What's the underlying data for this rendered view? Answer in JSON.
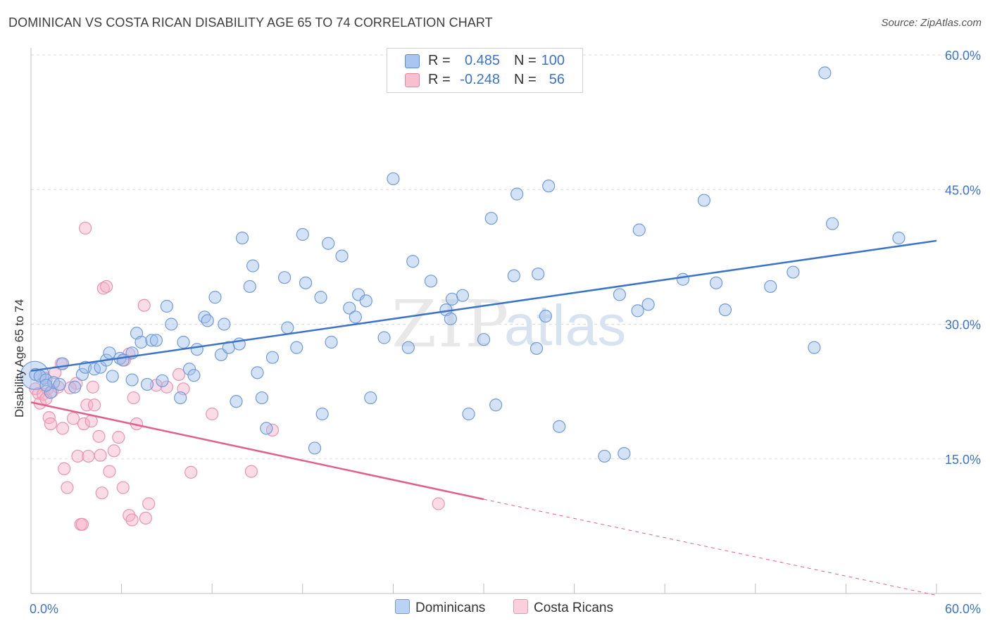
{
  "title": "DOMINICAN VS COSTA RICAN DISABILITY AGE 65 TO 74 CORRELATION CHART",
  "source": "Source: ZipAtlas.com",
  "watermark": {
    "zip": "ZIP",
    "atlas": "atlas"
  },
  "legend": {
    "rows": [
      {
        "r_label": "R =",
        "r_value": "0.485",
        "n_label": "N =",
        "n_value": "100",
        "color": "#a8c6f0",
        "border": "#5b8ed8"
      },
      {
        "r_label": "R =",
        "r_value": "-0.248",
        "n_label": "N =",
        "n_value": "56",
        "color": "#f8bfd0",
        "border": "#e584a4"
      }
    ]
  },
  "bottom_legend": [
    {
      "label": "Dominicans",
      "color": "#b9d3f5",
      "border": "#6f9bdc"
    },
    {
      "label": "Costa Ricans",
      "color": "#fbcfdc",
      "border": "#e897b1"
    }
  ],
  "colors": {
    "blue": "#3b74c7",
    "pink": "#e0608c",
    "axis_label": "#3b74c7",
    "grid": "#dddddd"
  },
  "chart_data": {
    "type": "scatter",
    "title": "DOMINICAN VS COSTA RICAN DISABILITY AGE 65 TO 74 CORRELATION CHART",
    "xlabel": "",
    "ylabel": "Disability Age 65 to 74",
    "xlim": [
      0,
      60
    ],
    "ylim": [
      0,
      60
    ],
    "x_tick_labels": [
      "0.0%",
      "60.0%"
    ],
    "y_ticks": [
      15,
      30,
      45,
      60
    ],
    "y_tick_labels": [
      "15.0%",
      "30.0%",
      "45.0%",
      "60.0%"
    ],
    "grid": true,
    "legend_position": "top-center",
    "series": [
      {
        "name": "Dominicans",
        "color": "#3b74c7",
        "trend": {
          "x0": 0,
          "y0": 24.8,
          "x1": 60,
          "y1": 39.3
        },
        "points": [
          [
            0.3,
            24.4
          ],
          [
            0.6,
            24.2
          ],
          [
            1.0,
            23.8
          ],
          [
            1.3,
            22.4
          ],
          [
            1.5,
            23.5
          ],
          [
            1.9,
            23.3
          ],
          [
            2.1,
            25.6
          ],
          [
            2.9,
            23.0
          ],
          [
            3.4,
            24.4
          ],
          [
            3.6,
            25.2
          ],
          [
            4.2,
            25.0
          ],
          [
            4.6,
            25.2
          ],
          [
            5.0,
            26.0
          ],
          [
            5.2,
            26.8
          ],
          [
            5.4,
            24.2
          ],
          [
            5.9,
            26.2
          ],
          [
            6.1,
            26.0
          ],
          [
            6.7,
            26.8
          ],
          [
            6.7,
            23.8
          ],
          [
            7.0,
            29.0
          ],
          [
            7.3,
            28.0
          ],
          [
            7.7,
            23.3
          ],
          [
            8.0,
            28.2
          ],
          [
            8.3,
            28.2
          ],
          [
            8.7,
            23.7
          ],
          [
            9.0,
            32.0
          ],
          [
            9.3,
            30.0
          ],
          [
            9.9,
            21.8
          ],
          [
            10.1,
            28.0
          ],
          [
            10.5,
            25.0
          ],
          [
            10.8,
            24.3
          ],
          [
            11.0,
            27.2
          ],
          [
            11.5,
            30.8
          ],
          [
            11.7,
            30.4
          ],
          [
            12.2,
            33.0
          ],
          [
            12.6,
            26.6
          ],
          [
            12.8,
            30.0
          ],
          [
            13.1,
            27.4
          ],
          [
            13.6,
            21.4
          ],
          [
            13.8,
            27.8
          ],
          [
            14.0,
            39.6
          ],
          [
            14.5,
            34.2
          ],
          [
            14.7,
            36.5
          ],
          [
            15.0,
            24.6
          ],
          [
            15.3,
            21.8
          ],
          [
            15.6,
            18.4
          ],
          [
            16.0,
            26.3
          ],
          [
            16.8,
            35.2
          ],
          [
            17.0,
            29.6
          ],
          [
            17.6,
            27.4
          ],
          [
            18.0,
            40.0
          ],
          [
            18.2,
            34.6
          ],
          [
            18.8,
            16.2
          ],
          [
            19.2,
            33.0
          ],
          [
            19.3,
            20.0
          ],
          [
            19.7,
            39.0
          ],
          [
            19.9,
            28.0
          ],
          [
            20.6,
            37.6
          ],
          [
            21.1,
            31.8
          ],
          [
            21.5,
            30.8
          ],
          [
            21.7,
            33.3
          ],
          [
            22.2,
            32.6
          ],
          [
            22.5,
            21.8
          ],
          [
            23.4,
            28.5
          ],
          [
            24.0,
            46.2
          ],
          [
            25.0,
            27.4
          ],
          [
            25.3,
            37.0
          ],
          [
            26.5,
            34.8
          ],
          [
            27.5,
            31.6
          ],
          [
            27.8,
            30.6
          ],
          [
            27.9,
            32.8
          ],
          [
            28.6,
            33.2
          ],
          [
            29.0,
            20.0
          ],
          [
            30.0,
            28.3
          ],
          [
            30.5,
            41.8
          ],
          [
            30.8,
            21.0
          ],
          [
            32.0,
            35.4
          ],
          [
            32.2,
            44.5
          ],
          [
            33.5,
            27.3
          ],
          [
            33.6,
            35.6
          ],
          [
            34.1,
            30.9
          ],
          [
            34.3,
            45.4
          ],
          [
            35.0,
            18.6
          ],
          [
            38.0,
            15.3
          ],
          [
            39.0,
            33.3
          ],
          [
            39.3,
            15.6
          ],
          [
            40.2,
            31.5
          ],
          [
            40.3,
            40.5
          ],
          [
            40.9,
            32.2
          ],
          [
            43.2,
            35.0
          ],
          [
            44.6,
            43.8
          ],
          [
            45.4,
            34.6
          ],
          [
            46.0,
            31.6
          ],
          [
            49.0,
            34.2
          ],
          [
            50.5,
            35.8
          ],
          [
            51.9,
            27.4
          ],
          [
            52.6,
            58.0
          ],
          [
            53.1,
            41.2
          ],
          [
            57.5,
            39.6
          ],
          [
            1.0,
            23.2
          ]
        ]
      },
      {
        "name": "Costa Ricans",
        "color": "#e0608c",
        "trend": {
          "x0": 0,
          "y0": 21.3,
          "x1": 30,
          "y1": 10.5,
          "dash_x1": 60,
          "dash_y1": -0.2
        },
        "points": [
          [
            0.3,
            22.8
          ],
          [
            0.5,
            22.3
          ],
          [
            0.6,
            21.2
          ],
          [
            0.8,
            22.2
          ],
          [
            1.0,
            21.7
          ],
          [
            1.1,
            22.8
          ],
          [
            1.2,
            19.6
          ],
          [
            1.3,
            18.9
          ],
          [
            1.6,
            24.6
          ],
          [
            1.8,
            23.0
          ],
          [
            2.0,
            25.6
          ],
          [
            2.1,
            18.4
          ],
          [
            2.2,
            13.9
          ],
          [
            2.4,
            11.8
          ],
          [
            2.8,
            19.5
          ],
          [
            3.0,
            23.4
          ],
          [
            3.1,
            15.3
          ],
          [
            3.3,
            7.7
          ],
          [
            3.4,
            7.7
          ],
          [
            3.5,
            18.9
          ],
          [
            3.6,
            40.7
          ],
          [
            3.7,
            21.0
          ],
          [
            3.8,
            15.3
          ],
          [
            4.0,
            19.2
          ],
          [
            4.2,
            21.0
          ],
          [
            4.5,
            17.5
          ],
          [
            4.6,
            15.4
          ],
          [
            4.7,
            11.2
          ],
          [
            4.8,
            34.0
          ],
          [
            5.0,
            34.2
          ],
          [
            5.2,
            13.6
          ],
          [
            5.5,
            15.9
          ],
          [
            5.8,
            17.4
          ],
          [
            6.1,
            11.8
          ],
          [
            6.5,
            26.7
          ],
          [
            6.5,
            8.7
          ],
          [
            6.7,
            8.2
          ],
          [
            6.8,
            21.8
          ],
          [
            7.0,
            18.9
          ],
          [
            7.5,
            32.1
          ],
          [
            7.6,
            8.4
          ],
          [
            7.8,
            10.0
          ],
          [
            8.3,
            23.2
          ],
          [
            9.0,
            23.0
          ],
          [
            9.8,
            24.4
          ],
          [
            10.1,
            22.8
          ],
          [
            10.6,
            13.5
          ],
          [
            12.0,
            20.0
          ],
          [
            14.6,
            13.6
          ],
          [
            16.0,
            18.2
          ],
          [
            27.0,
            10.0
          ],
          [
            0.9,
            24.0
          ],
          [
            1.4,
            22.5
          ],
          [
            2.6,
            22.9
          ],
          [
            6.2,
            26.0
          ],
          [
            4.1,
            23.0
          ]
        ]
      }
    ]
  }
}
